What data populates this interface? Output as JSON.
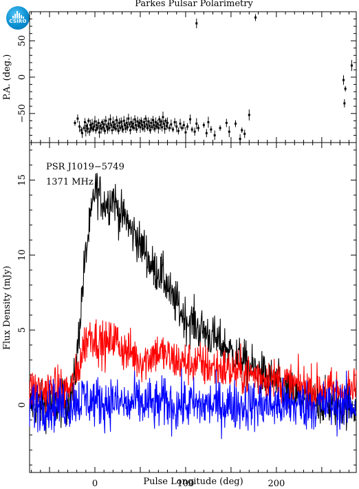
{
  "header": {
    "title": "Parkes Pulsar Polarimetry",
    "logo_text": "CSIRO"
  },
  "chart_data": [
    {
      "type": "scatter",
      "ylabel": "P.A. (deg.)",
      "xlim": [
        -72,
        288
      ],
      "ylim": [
        -90,
        90
      ],
      "yticks": [
        -50,
        0,
        50
      ],
      "color": "#000000",
      "points": [
        [
          -22,
          -63
        ],
        [
          -19,
          -57
        ],
        [
          -17,
          -68
        ],
        [
          -15,
          -73
        ],
        [
          -14,
          -77
        ],
        [
          -12,
          -70
        ],
        [
          -11,
          -62
        ],
        [
          -10,
          -74
        ],
        [
          -9,
          -67
        ],
        [
          -8,
          -71
        ],
        [
          -7,
          -60
        ],
        [
          -6,
          -75
        ],
        [
          -5,
          -66
        ],
        [
          -4,
          -70
        ],
        [
          -3,
          -64
        ],
        [
          -2,
          -72
        ],
        [
          -1,
          -68
        ],
        [
          0,
          -61
        ],
        [
          1,
          -73
        ],
        [
          2,
          -66
        ],
        [
          3,
          -70
        ],
        [
          4,
          -63
        ],
        [
          5,
          -76
        ],
        [
          6,
          -67
        ],
        [
          7,
          -71
        ],
        [
          8,
          -62
        ],
        [
          9,
          -69
        ],
        [
          10,
          -65
        ],
        [
          11,
          -74
        ],
        [
          12,
          -60
        ],
        [
          13,
          -68
        ],
        [
          14,
          -72
        ],
        [
          15,
          -64
        ],
        [
          16,
          -70
        ],
        [
          17,
          -58
        ],
        [
          18,
          -66
        ],
        [
          19,
          -73
        ],
        [
          20,
          -62
        ],
        [
          21,
          -69
        ],
        [
          22,
          -65
        ],
        [
          23,
          -71
        ],
        [
          24,
          -59
        ],
        [
          25,
          -67
        ],
        [
          26,
          -74
        ],
        [
          27,
          -63
        ],
        [
          28,
          -70
        ],
        [
          29,
          -61
        ],
        [
          30,
          -68
        ],
        [
          31,
          -72
        ],
        [
          32,
          -60
        ],
        [
          33,
          -66
        ],
        [
          34,
          -71
        ],
        [
          35,
          -63
        ],
        [
          36,
          -69
        ],
        [
          37,
          -57
        ],
        [
          38,
          -65
        ],
        [
          39,
          -73
        ],
        [
          40,
          -62
        ],
        [
          41,
          -68
        ],
        [
          42,
          -64
        ],
        [
          43,
          -70
        ],
        [
          44,
          -58
        ],
        [
          45,
          -66
        ],
        [
          46,
          -72
        ],
        [
          47,
          -61
        ],
        [
          48,
          -67
        ],
        [
          49,
          -63
        ],
        [
          50,
          -69
        ],
        [
          51,
          -60
        ],
        [
          52,
          -66
        ],
        [
          53,
          -71
        ],
        [
          54,
          -62
        ],
        [
          55,
          -68
        ],
        [
          56,
          -57
        ],
        [
          57,
          -65
        ],
        [
          58,
          -70
        ],
        [
          59,
          -61
        ],
        [
          60,
          -67
        ],
        [
          61,
          -73
        ],
        [
          62,
          -63
        ],
        [
          63,
          -69
        ],
        [
          64,
          -59
        ],
        [
          65,
          -66
        ],
        [
          66,
          -71
        ],
        [
          67,
          -62
        ],
        [
          68,
          -68
        ],
        [
          69,
          -64
        ],
        [
          70,
          -70
        ],
        [
          71,
          -58
        ],
        [
          72,
          -66
        ],
        [
          73,
          -61
        ],
        [
          74,
          -69
        ],
        [
          75,
          -55
        ],
        [
          76,
          -64
        ],
        [
          77,
          -71
        ],
        [
          78,
          -60
        ],
        [
          79,
          -67
        ],
        [
          80,
          -63
        ],
        [
          82,
          -70
        ],
        [
          84,
          -65
        ],
        [
          86,
          -72
        ],
        [
          88,
          -62
        ],
        [
          90,
          -68
        ],
        [
          92,
          -74
        ],
        [
          94,
          -64
        ],
        [
          96,
          -70
        ],
        [
          98,
          -66
        ],
        [
          100,
          -76
        ],
        [
          102,
          -68
        ],
        [
          105,
          -58
        ],
        [
          107,
          -72
        ],
        [
          110,
          -75
        ],
        [
          112,
          -64
        ],
        [
          114,
          -70
        ],
        [
          112,
          74
        ],
        [
          120,
          -66
        ],
        [
          123,
          -77
        ],
        [
          125,
          -62
        ],
        [
          128,
          -72
        ],
        [
          132,
          -80
        ],
        [
          138,
          -70
        ],
        [
          145,
          -63
        ],
        [
          148,
          -75
        ],
        [
          155,
          -64
        ],
        [
          160,
          -85
        ],
        [
          162,
          -73
        ],
        [
          165,
          -78
        ],
        [
          170,
          -52
        ],
        [
          177,
          82
        ],
        [
          274,
          -4
        ],
        [
          276,
          -16
        ],
        [
          275,
          -36
        ],
        [
          283,
          16
        ]
      ]
    },
    {
      "type": "line",
      "xlabel": "Pulse Longitude (deg)",
      "ylabel": "Flux Density (mJy)",
      "xlim": [
        -72,
        288
      ],
      "ylim": [
        -4.5,
        17.5
      ],
      "xticks": [
        0,
        100,
        200
      ],
      "yticks": [
        0,
        5,
        10,
        15
      ],
      "annotations": [
        "PSR J1019−5749",
        "1371 MHz"
      ],
      "series": [
        {
          "color": "#000000",
          "x": [
            -72,
            -60,
            -50,
            -40,
            -30,
            -24,
            -20,
            -16,
            -12,
            -8,
            -4,
            0,
            5,
            10,
            15,
            20,
            25,
            30,
            35,
            40,
            45,
            50,
            55,
            60,
            65,
            70,
            75,
            80,
            85,
            90,
            95,
            100,
            105,
            110,
            115,
            120,
            125,
            130,
            135,
            140,
            145,
            150,
            155,
            160,
            165,
            170,
            175,
            180,
            185,
            190,
            195,
            200,
            205,
            210,
            215,
            220,
            230,
            240,
            250,
            260,
            270,
            280,
            288
          ],
          "values": [
            0,
            0,
            0,
            0,
            0.2,
            1,
            3,
            6,
            9,
            11,
            12.5,
            14.5,
            14,
            13.5,
            13.5,
            14,
            13,
            12.5,
            12.5,
            11.5,
            11.5,
            10.5,
            10.5,
            9.5,
            9,
            9,
            8.5,
            8,
            7,
            6.8,
            6.2,
            5.8,
            5.5,
            5.5,
            5,
            5,
            4.7,
            4.5,
            4.2,
            4,
            3.8,
            3.5,
            3.2,
            3,
            2.8,
            2.6,
            2.4,
            2.2,
            2,
            1.8,
            1.6,
            1.4,
            1.2,
            1,
            0.8,
            0.6,
            0.4,
            0.3,
            0.2,
            0.1,
            0,
            0,
            0
          ]
        },
        {
          "color": "#ff0000",
          "x": [
            -72,
            -60,
            -50,
            -40,
            -30,
            -24,
            -20,
            -16,
            -12,
            -8,
            -4,
            0,
            5,
            10,
            15,
            20,
            25,
            30,
            35,
            40,
            45,
            50,
            55,
            60,
            65,
            70,
            75,
            80,
            85,
            90,
            95,
            100,
            105,
            110,
            115,
            120,
            125,
            130,
            135,
            140,
            145,
            150,
            155,
            160,
            165,
            170,
            175,
            180,
            185,
            190,
            195,
            200,
            205,
            210,
            215,
            220,
            230,
            240,
            250,
            260,
            270,
            280,
            288
          ],
          "values": [
            1,
            1,
            1,
            1,
            1,
            1.2,
            2,
            3,
            4,
            4.5,
            4.8,
            4.5,
            4.2,
            4,
            4,
            4.5,
            4.2,
            3.8,
            3.5,
            3.5,
            3.2,
            3,
            3,
            3.2,
            3.5,
            3.5,
            3.4,
            3.2,
            3,
            3,
            2.8,
            2.8,
            2.8,
            2.8,
            2.8,
            2.6,
            2.6,
            2.5,
            2.5,
            2.4,
            2.4,
            2.3,
            2.2,
            2.2,
            2.1,
            2,
            2,
            2,
            1.9,
            1.8,
            1.7,
            1.6,
            1.5,
            1.5,
            1.4,
            1.3,
            1.2,
            1.1,
            1,
            1,
            1,
            1,
            1
          ]
        },
        {
          "color": "#0000ff",
          "x": [
            -72,
            -60,
            -50,
            -40,
            -30,
            -24,
            -20,
            -16,
            -12,
            -8,
            -4,
            0,
            5,
            10,
            15,
            20,
            25,
            30,
            35,
            40,
            45,
            50,
            55,
            60,
            65,
            70,
            75,
            80,
            85,
            90,
            95,
            100,
            105,
            110,
            115,
            120,
            125,
            130,
            135,
            140,
            145,
            150,
            155,
            160,
            165,
            170,
            175,
            180,
            185,
            190,
            195,
            200,
            205,
            210,
            215,
            220,
            230,
            240,
            250,
            260,
            270,
            280,
            288
          ],
          "values": [
            0,
            0,
            0,
            0,
            0,
            0.2,
            0.4,
            0.3,
            0.5,
            0.4,
            0.3,
            0.2,
            0.3,
            0.1,
            0.2,
            0.4,
            0,
            0.2,
            -0.1,
            0,
            0.3,
            0.1,
            0,
            0.2,
            -0.1,
            0,
            0.2,
            0.1,
            0,
            -0.2,
            0.1,
            0,
            0.1,
            0,
            -0.1,
            0,
            0,
            0,
            0,
            0,
            0,
            0,
            0,
            0,
            0,
            0,
            0,
            0,
            0,
            0,
            0,
            0,
            0,
            0,
            0,
            0,
            0,
            0,
            0,
            0,
            0,
            0,
            0
          ]
        }
      ]
    }
  ]
}
